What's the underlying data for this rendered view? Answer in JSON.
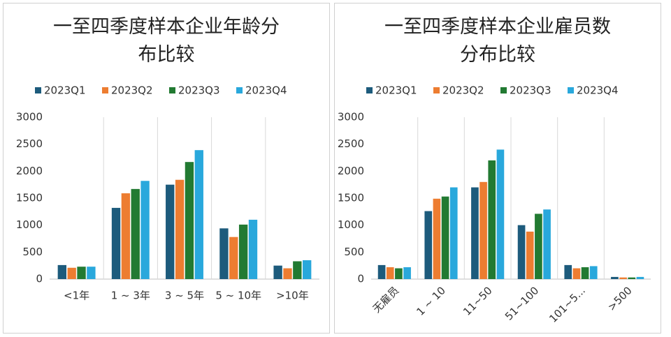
{
  "chart_data": [
    {
      "type": "bar",
      "title": "一至四季度样本企业年龄分布比较",
      "categories": [
        "<1年",
        "1 ~ 3年",
        "3 ~ 5年",
        "5 ~ 10年",
        ">10年"
      ],
      "series": [
        {
          "name": "2023Q1",
          "color": "#1d5b7c",
          "values": [
            260,
            1320,
            1750,
            940,
            250
          ]
        },
        {
          "name": "2023Q2",
          "color": "#ed7d31",
          "values": [
            210,
            1590,
            1840,
            780,
            200
          ]
        },
        {
          "name": "2023Q3",
          "color": "#227a32",
          "values": [
            230,
            1670,
            2170,
            1010,
            330
          ]
        },
        {
          "name": "2023Q4",
          "color": "#29a8dc",
          "values": [
            230,
            1820,
            2390,
            1100,
            350
          ]
        }
      ],
      "ylim": [
        0,
        3000
      ],
      "yticks": [
        0,
        500,
        1000,
        1500,
        2000,
        2500,
        3000
      ],
      "legend": "top"
    },
    {
      "type": "bar",
      "title": "一至四季度样本企业雇员数分布比较",
      "categories": [
        "无雇员",
        "1 ~ 10",
        "11~50",
        "51~100",
        "101~5...",
        ">500"
      ],
      "series": [
        {
          "name": "2023Q1",
          "color": "#1d5b7c",
          "values": [
            260,
            1260,
            1700,
            1000,
            260,
            40
          ]
        },
        {
          "name": "2023Q2",
          "color": "#ed7d31",
          "values": [
            220,
            1490,
            1800,
            880,
            200,
            30
          ]
        },
        {
          "name": "2023Q3",
          "color": "#227a32",
          "values": [
            200,
            1530,
            2200,
            1210,
            220,
            30
          ]
        },
        {
          "name": "2023Q4",
          "color": "#29a8dc",
          "values": [
            220,
            1700,
            2400,
            1290,
            240,
            40
          ]
        }
      ],
      "ylim": [
        0,
        3000
      ],
      "yticks": [
        0,
        500,
        1000,
        1500,
        2000,
        2500,
        3000
      ],
      "legend": "top",
      "xtick_rotation": -45
    }
  ]
}
